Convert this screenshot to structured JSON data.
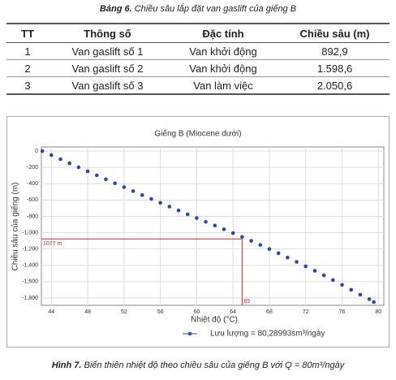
{
  "table": {
    "caption_label": "Bảng 6.",
    "caption": "Chiều sâu lắp đặt van gaslift của giếng B",
    "header": [
      "TT",
      "Thông số",
      "Đặc tính",
      "Chiều sâu (m)"
    ],
    "rows": [
      [
        "1",
        "Van gaslift số 1",
        "Van khởi động",
        "892,9"
      ],
      [
        "2",
        "Van gaslift số 2",
        "Van khởi động",
        "1.598,6"
      ],
      [
        "3",
        "Van gaslift số 3",
        "Van làm việc",
        "2.050,6"
      ]
    ]
  },
  "chart_data": {
    "type": "scatter",
    "title": "Giếng B (Miocene dưới)",
    "x_label": "Nhiệt độ (°C)",
    "y_label": "Chiều sâu của giếng (m)",
    "xlim": [
      42.9,
      80.6
    ],
    "ylim": [
      -1890,
      50
    ],
    "xticks": [
      44,
      48,
      52,
      56,
      60,
      64,
      68,
      72,
      76,
      80
    ],
    "yticks": [
      0,
      -200,
      -400,
      -600,
      -800,
      {
        "value": -1000,
        "label": "-1,000"
      },
      {
        "value": -1200,
        "label": "-1,200"
      },
      {
        "value": -1400,
        "label": "-1,400"
      },
      {
        "value": -1600,
        "label": "-1,600"
      },
      {
        "value": -1800,
        "label": "-1,800"
      }
    ],
    "grid": true,
    "series": [
      {
        "name": "Lưu lượng = 80,28993sm³/ngày",
        "color": "#2e4a9e",
        "x": [
          43,
          44,
          45,
          46,
          47,
          48,
          49,
          50,
          51,
          52,
          53,
          54,
          55,
          56,
          57,
          58,
          59,
          60,
          61,
          62,
          63,
          64,
          65,
          66,
          67,
          68,
          69,
          70,
          71,
          72,
          73,
          74,
          75,
          76,
          77,
          78,
          79,
          79.5
        ],
        "values": [
          0,
          -50,
          -100,
          -150,
          -199,
          -248,
          -297,
          -346,
          -395,
          -443,
          -491,
          -539,
          -587,
          -634,
          -681,
          -728,
          -775,
          -821,
          -867,
          -913,
          -959,
          -1005,
          -1052,
          -1100,
          -1150,
          -1200,
          -1252,
          -1305,
          -1358,
          -1412,
          -1467,
          -1523,
          -1580,
          -1640,
          -1700,
          -1760,
          -1815,
          -1850
        ]
      }
    ],
    "reference": {
      "x": 65,
      "y": -1077,
      "x_label": "65",
      "y_label": "1077 m",
      "color": "#d62728"
    }
  },
  "figure": {
    "caption_label": "Hình 7.",
    "caption": "Biến thiên nhiệt độ theo chiều sâu của giếng B với Q = 80m³/ngày"
  }
}
